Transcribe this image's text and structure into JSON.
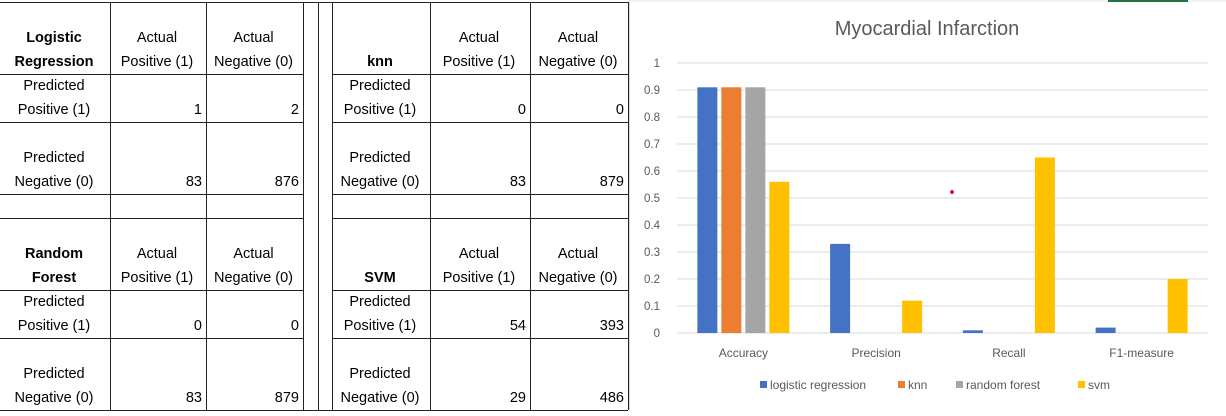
{
  "tables": [
    {
      "name": "Logistic Regression",
      "name_lines": [
        "Logistic",
        "Regression"
      ],
      "col_headers": [
        [
          "Actual",
          "Positive (1)"
        ],
        [
          "Actual",
          "Negative (0)"
        ]
      ],
      "rows": [
        {
          "label": [
            "Predicted",
            "Positive (1)"
          ],
          "values": [
            "1",
            "2"
          ]
        },
        {
          "label": [
            "Predicted",
            "Negative (0)"
          ],
          "values": [
            "83",
            "876"
          ]
        }
      ]
    },
    {
      "name": "knn",
      "name_lines": [
        "",
        "knn"
      ],
      "col_headers": [
        [
          "Actual",
          "Positive (1)"
        ],
        [
          "Actual",
          "Negative (0)"
        ]
      ],
      "rows": [
        {
          "label": [
            "Predicted",
            "Positive (1)"
          ],
          "values": [
            "0",
            "0"
          ]
        },
        {
          "label": [
            "Predicted",
            "Negative (0)"
          ],
          "values": [
            "83",
            "879"
          ]
        }
      ]
    },
    {
      "name": "Random Forest",
      "name_lines": [
        "Random",
        "Forest"
      ],
      "col_headers": [
        [
          "Actual",
          "Positive (1)"
        ],
        [
          "Actual",
          "Negative (0)"
        ]
      ],
      "rows": [
        {
          "label": [
            "Predicted",
            "Positive (1)"
          ],
          "values": [
            "0",
            "0"
          ]
        },
        {
          "label": [
            "Predicted",
            "Negative (0)"
          ],
          "values": [
            "83",
            "879"
          ]
        }
      ]
    },
    {
      "name": "SVM",
      "name_lines": [
        "",
        "SVM"
      ],
      "col_headers": [
        [
          "Actual",
          "Positive (1)"
        ],
        [
          "Actual",
          "Negative (0)"
        ]
      ],
      "rows": [
        {
          "label": [
            "Predicted",
            "Positive (1)"
          ],
          "values": [
            "54",
            "393"
          ]
        },
        {
          "label": [
            "Predicted",
            "Negative (0)"
          ],
          "values": [
            "29",
            "486"
          ]
        }
      ]
    }
  ],
  "chart_data": {
    "type": "bar",
    "title": "Myocardial Infarction",
    "categories": [
      "Accuracy",
      "Precision",
      "Recall",
      "F1-measure"
    ],
    "series": [
      {
        "name": "logistic regression",
        "color": "#4472C4",
        "values": [
          0.91,
          0.33,
          0.01,
          0.02
        ]
      },
      {
        "name": "knn",
        "color": "#ED7D31",
        "values": [
          0.91,
          0,
          0,
          0
        ]
      },
      {
        "name": "random forest",
        "color": "#A5A5A5",
        "values": [
          0.91,
          0,
          0,
          0
        ]
      },
      {
        "name": "svm",
        "color": "#FFC000",
        "values": [
          0.56,
          0.12,
          0.65,
          0.2
        ]
      }
    ],
    "yticks": [
      "0",
      "0.1",
      "0.2",
      "0.3",
      "0.4",
      "0.5",
      "0.6",
      "0.7",
      "0.8",
      "0.9",
      "1"
    ],
    "ylim": [
      0,
      1
    ],
    "grid": true,
    "legend_position": "bottom"
  },
  "colors": {
    "marker_dot": "#E81123",
    "gridline": "#D9D9D9",
    "axis_text": "#595959"
  }
}
